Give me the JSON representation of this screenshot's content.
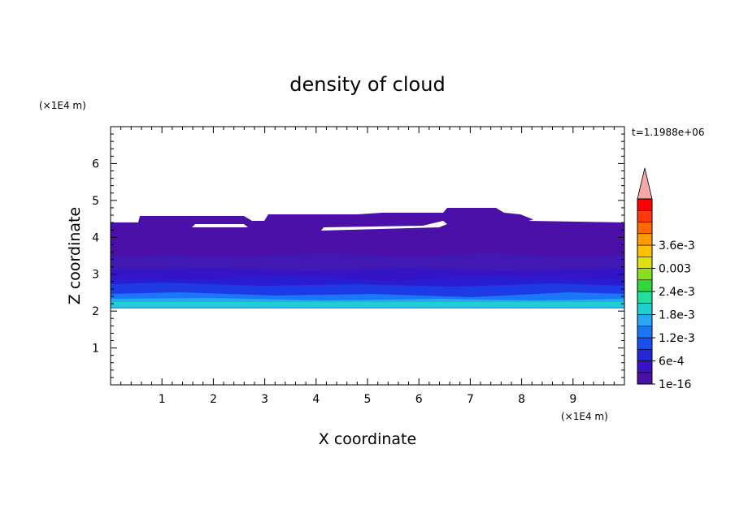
{
  "chart_data": {
    "type": "heatmap",
    "title": "density of cloud",
    "xlabel": "X coordinate",
    "ylabel": "Z coordinate",
    "x_scale_note": "(×1E4 m)",
    "y_scale_note": "(×1E4 m)",
    "time_label": "t=1.1988e+06",
    "xlim": [
      0,
      10
    ],
    "ylim": [
      0,
      7
    ],
    "x_ticks": [
      "1",
      "2",
      "3",
      "4",
      "5",
      "6",
      "7",
      "8",
      "9"
    ],
    "y_ticks": [
      "1",
      "2",
      "3",
      "4",
      "5",
      "6"
    ],
    "grid": false,
    "colorbar": {
      "position": "right",
      "labels": [
        "1e-16",
        "6e-4",
        "1.2e-3",
        "1.8e-3",
        "2.4e-3",
        "0.003",
        "3.6e-3"
      ],
      "levels": [
        "#4a10a8",
        "#3a10c8",
        "#2228d8",
        "#1850f0",
        "#1a78f6",
        "#28a8f4",
        "#20d0d0",
        "#20e0a0",
        "#30d840",
        "#88e020",
        "#e0e010",
        "#ffc000",
        "#ff9a00",
        "#ff6a00",
        "#ff3810",
        "#ff0000"
      ],
      "extend_color": "#f4a8a8"
    },
    "cloud_layer": {
      "base_z": 2.1,
      "top_z_range": [
        4.4,
        4.8
      ],
      "peak_density_z": 2.2,
      "max_density_in_field": 0.0018
    }
  }
}
